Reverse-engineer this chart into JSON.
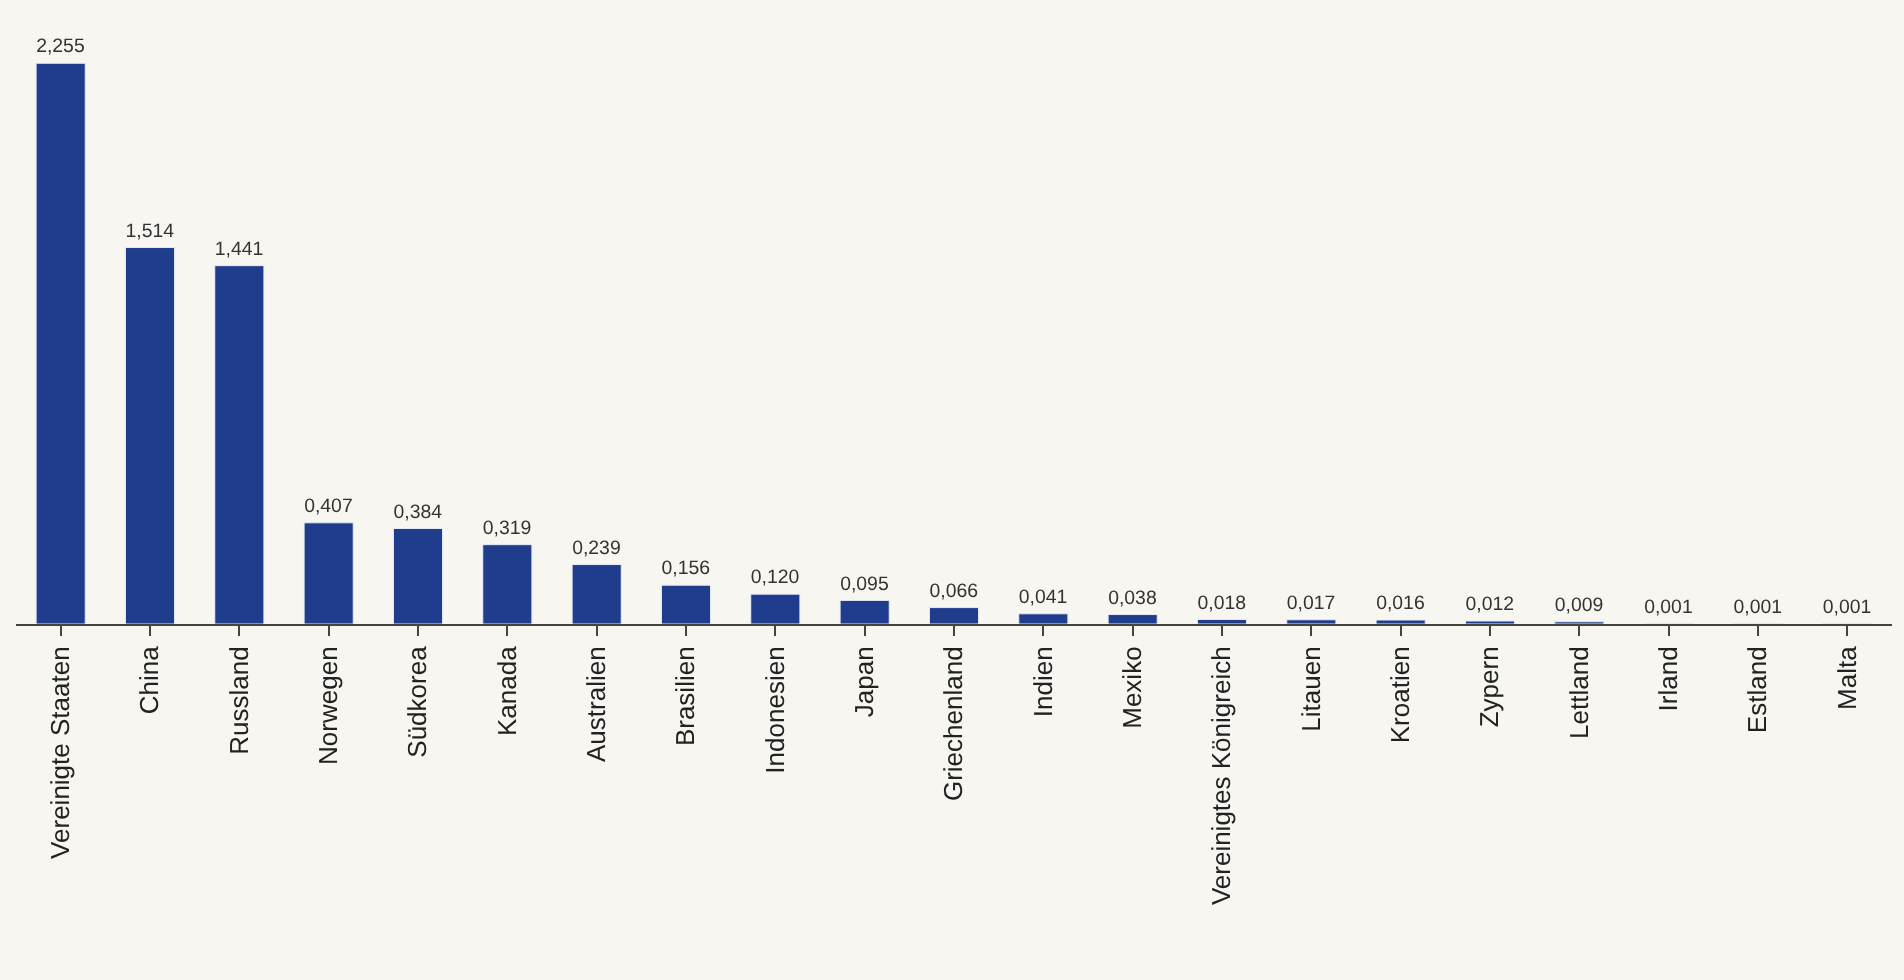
{
  "chart_data": {
    "type": "bar",
    "categories": [
      "Vereinigte Staaten",
      "China",
      "Russland",
      "Norwegen",
      "Südkorea",
      "Kanada",
      "Australien",
      "Brasilien",
      "Indonesien",
      "Japan",
      "Griechenland",
      "Indien",
      "Mexiko",
      "Vereinigtes Königreich",
      "Litauen",
      "Kroatien",
      "Zypern",
      "Lettland",
      "Irland",
      "Estland",
      "Malta"
    ],
    "values": [
      2.255,
      1.514,
      1.441,
      0.407,
      0.384,
      0.319,
      0.239,
      0.156,
      0.12,
      0.095,
      0.066,
      0.041,
      0.038,
      0.018,
      0.017,
      0.016,
      0.012,
      0.009,
      0.001,
      0.001,
      0.001
    ],
    "value_labels": [
      "2,255",
      "1,514",
      "1,441",
      "0,407",
      "0,384",
      "0,319",
      "0,239",
      "0,156",
      "0,120",
      "0,095",
      "0,066",
      "0,041",
      "0,038",
      "0,018",
      "0,017",
      "0,016",
      "0,012",
      "0,009",
      "0,001",
      "0,001",
      "0,001"
    ],
    "color": "#1f3d8c",
    "grid": false,
    "legend": false
  }
}
